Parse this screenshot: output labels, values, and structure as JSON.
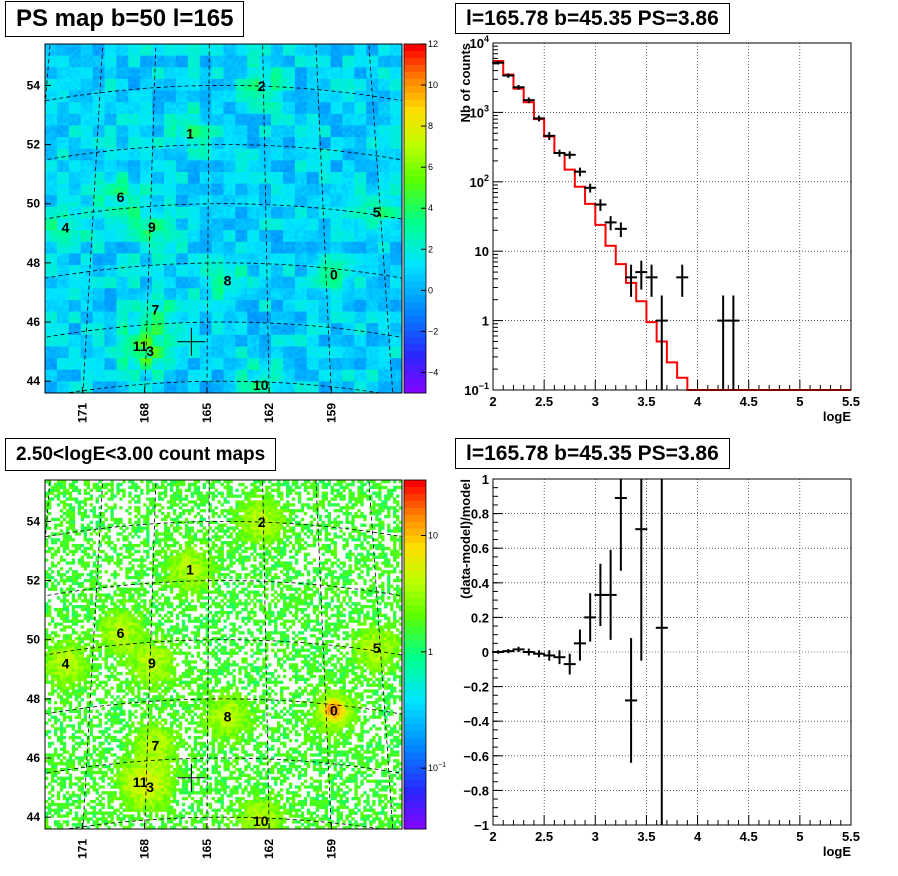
{
  "chart_data": [
    {
      "type": "heatmap",
      "title": "PS map b=50 l=165",
      "lon_ticks": [
        "171",
        "168",
        "165",
        "162",
        "159"
      ],
      "lat_ticks": [
        "54",
        "52",
        "50",
        "48",
        "46",
        "44"
      ],
      "colorbar": {
        "scale": "linear",
        "min": -5,
        "max": 12,
        "ticks": [
          "12",
          "10",
          "8",
          "6",
          "4",
          "2",
          "0",
          "−2",
          "−4"
        ]
      },
      "sources": [
        {
          "label": "0",
          "lon": 158.6,
          "lat": 47.8
        },
        {
          "label": "1",
          "lon": 166.0,
          "lat": 52.4
        },
        {
          "label": "2",
          "lon": 162.1,
          "lat": 54.0
        },
        {
          "label": "3",
          "lon": 167.8,
          "lat": 45.1
        },
        {
          "label": "4",
          "lon": 172.4,
          "lat": 49.6
        },
        {
          "label": "5",
          "lon": 156.2,
          "lat": 50.1
        },
        {
          "label": "6",
          "lon": 169.6,
          "lat": 50.4
        },
        {
          "label": "7",
          "lon": 167.6,
          "lat": 46.5
        },
        {
          "label": "8",
          "lon": 164.0,
          "lat": 47.4
        },
        {
          "label": "9",
          "lon": 167.9,
          "lat": 49.3
        },
        {
          "label": "10",
          "lon": 162.4,
          "lat": 43.9
        },
        {
          "label": "11",
          "lon": 168.3,
          "lat": 45.3
        }
      ],
      "marker": {
        "lon": 165.78,
        "lat": 45.35
      }
    },
    {
      "type": "line",
      "title": "l=165.78 b=45.35 PS=3.86",
      "xlabel": "logE",
      "ylabel": "Nb of counts",
      "xlim": [
        2,
        5.5
      ],
      "ylim": [
        0.1,
        10000
      ],
      "yscale": "log",
      "grid": true,
      "x_ticks": [
        "2",
        "2.5",
        "3",
        "3.5",
        "4",
        "4.5",
        "5",
        "5.5"
      ],
      "y_ticks": [
        {
          "v": 10000,
          "base": "10",
          "exp": "4"
        },
        {
          "v": 1000,
          "base": "10",
          "exp": "3"
        },
        {
          "v": 100,
          "base": "10",
          "exp": "2"
        },
        {
          "v": 10,
          "base": "10",
          "exp": ""
        },
        {
          "v": 1,
          "base": "1",
          "exp": ""
        },
        {
          "v": 0.1,
          "base": "10",
          "exp": "−1"
        }
      ],
      "series": [
        {
          "kind": "model-step",
          "color": "#ff0000",
          "edges": [
            2.0,
            2.1,
            2.2,
            2.3,
            2.4,
            2.5,
            2.6,
            2.7,
            2.8,
            2.9,
            3.0,
            3.1,
            3.2,
            3.3,
            3.4,
            3.5,
            3.6,
            3.7,
            3.8,
            3.9,
            4.0,
            4.1,
            4.2,
            4.3,
            4.4,
            4.5,
            4.6,
            4.7,
            4.8,
            4.9,
            5.0,
            5.1,
            5.2,
            5.3,
            5.4,
            5.5
          ],
          "values": [
            5500,
            3500,
            2200,
            1400,
            800,
            450,
            260,
            150,
            85,
            48,
            24,
            12,
            6.5,
            3.5,
            1.9,
            0.95,
            0.5,
            0.25,
            0.15,
            0.1,
            0.1,
            0.1,
            0.1,
            0.1,
            0.1,
            0.1,
            0.1,
            0.1,
            0.1,
            0.1,
            0.1,
            0.1,
            0.1,
            0.1,
            0.1
          ]
        },
        {
          "kind": "data",
          "color": "#000000",
          "points": [
            {
              "x": 2.05,
              "y": 5200,
              "lo": 4900,
              "hi": 5500
            },
            {
              "x": 2.15,
              "y": 3400,
              "lo": 3150,
              "hi": 3650
            },
            {
              "x": 2.25,
              "y": 2300,
              "lo": 2120,
              "hi": 2480
            },
            {
              "x": 2.35,
              "y": 1500,
              "lo": 1360,
              "hi": 1640
            },
            {
              "x": 2.45,
              "y": 820,
              "lo": 740,
              "hi": 900
            },
            {
              "x": 2.55,
              "y": 460,
              "lo": 400,
              "hi": 520
            },
            {
              "x": 2.65,
              "y": 260,
              "lo": 230,
              "hi": 290
            },
            {
              "x": 2.75,
              "y": 245,
              "lo": 215,
              "hi": 275
            },
            {
              "x": 2.85,
              "y": 140,
              "lo": 120,
              "hi": 160
            },
            {
              "x": 2.95,
              "y": 82,
              "lo": 70,
              "hi": 94
            },
            {
              "x": 3.05,
              "y": 47,
              "lo": 38,
              "hi": 56
            },
            {
              "x": 3.15,
              "y": 26,
              "lo": 20,
              "hi": 32
            },
            {
              "x": 3.25,
              "y": 21,
              "lo": 16,
              "hi": 26
            },
            {
              "x": 3.35,
              "y": 4.2,
              "lo": 2.2,
              "hi": 6.4
            },
            {
              "x": 3.45,
              "y": 5,
              "lo": 2.8,
              "hi": 7.3
            },
            {
              "x": 3.55,
              "y": 4.2,
              "lo": 2.2,
              "hi": 6.4
            },
            {
              "x": 3.65,
              "y": 1,
              "lo": 0.1,
              "hi": 2.3
            },
            {
              "x": 3.85,
              "y": 4.2,
              "lo": 2.2,
              "hi": 6.4
            },
            {
              "x": 4.25,
              "y": 1,
              "lo": 0.1,
              "hi": 2.3
            },
            {
              "x": 4.35,
              "y": 1,
              "lo": 0.1,
              "hi": 2.3
            }
          ]
        }
      ]
    },
    {
      "type": "heatmap",
      "title": "2.50<logE<3.00 count maps",
      "lon_ticks": [
        "171",
        "168",
        "165",
        "162",
        "159"
      ],
      "lat_ticks": [
        "54",
        "52",
        "50",
        "48",
        "46",
        "44"
      ],
      "colorbar": {
        "scale": "log",
        "ticks": [
          {
            "v": 10,
            "base": "10",
            "exp": ""
          },
          {
            "v": 1,
            "base": "1",
            "exp": ""
          },
          {
            "v": 0.1,
            "base": "10",
            "exp": "−1"
          }
        ]
      },
      "sources": [
        {
          "label": "0",
          "lon": 158.6,
          "lat": 47.8
        },
        {
          "label": "1",
          "lon": 166.0,
          "lat": 52.4
        },
        {
          "label": "2",
          "lon": 162.1,
          "lat": 54.0
        },
        {
          "label": "3",
          "lon": 167.8,
          "lat": 45.1
        },
        {
          "label": "4",
          "lon": 172.4,
          "lat": 49.6
        },
        {
          "label": "5",
          "lon": 156.2,
          "lat": 50.1
        },
        {
          "label": "6",
          "lon": 169.6,
          "lat": 50.4
        },
        {
          "label": "7",
          "lon": 167.6,
          "lat": 46.5
        },
        {
          "label": "8",
          "lon": 164.0,
          "lat": 47.4
        },
        {
          "label": "9",
          "lon": 167.9,
          "lat": 49.3
        },
        {
          "label": "10",
          "lon": 162.4,
          "lat": 43.9
        },
        {
          "label": "11",
          "lon": 168.3,
          "lat": 45.3
        }
      ],
      "marker": {
        "lon": 165.78,
        "lat": 45.35
      }
    },
    {
      "type": "scatter",
      "title": "l=165.78 b=45.35 PS=3.86",
      "xlabel": "logE",
      "ylabel": "(data-model)/model",
      "xlim": [
        2,
        5.5
      ],
      "ylim": [
        -1,
        1
      ],
      "grid": true,
      "x_ticks": [
        "2",
        "2.5",
        "3",
        "3.5",
        "4",
        "4.5",
        "5",
        "5.5"
      ],
      "y_ticks": [
        "1",
        "0.8",
        "0.6",
        "0.4",
        "0.2",
        "0",
        "−0.2",
        "−0.4",
        "−0.6",
        "−0.8",
        "−1"
      ],
      "points": [
        {
          "x": 2.05,
          "y": 0.0,
          "lo": -0.01,
          "hi": 0.01
        },
        {
          "x": 2.15,
          "y": 0.005,
          "lo": -0.007,
          "hi": 0.017
        },
        {
          "x": 2.25,
          "y": 0.015,
          "lo": 0.0,
          "hi": 0.03
        },
        {
          "x": 2.35,
          "y": 0.0,
          "lo": -0.02,
          "hi": 0.02
        },
        {
          "x": 2.45,
          "y": -0.01,
          "lo": -0.03,
          "hi": 0.01
        },
        {
          "x": 2.55,
          "y": -0.02,
          "lo": -0.05,
          "hi": 0.01
        },
        {
          "x": 2.65,
          "y": -0.03,
          "lo": -0.07,
          "hi": 0.01
        },
        {
          "x": 2.75,
          "y": -0.07,
          "lo": -0.13,
          "hi": -0.01
        },
        {
          "x": 2.85,
          "y": 0.05,
          "lo": -0.05,
          "hi": 0.13
        },
        {
          "x": 2.95,
          "y": 0.2,
          "lo": 0.06,
          "hi": 0.34
        },
        {
          "x": 3.05,
          "y": 0.33,
          "lo": 0.15,
          "hi": 0.51
        },
        {
          "x": 3.15,
          "y": 0.33,
          "lo": 0.07,
          "hi": 0.59
        },
        {
          "x": 3.25,
          "y": 0.89,
          "lo": 0.47,
          "hi": 1.31
        },
        {
          "x": 3.35,
          "y": -0.28,
          "lo": -0.64,
          "hi": 0.08
        },
        {
          "x": 3.45,
          "y": 0.71,
          "lo": -0.05,
          "hi": 1.3
        },
        {
          "x": 3.65,
          "y": 0.14,
          "lo": -1.0,
          "hi": 1.3
        }
      ]
    }
  ]
}
